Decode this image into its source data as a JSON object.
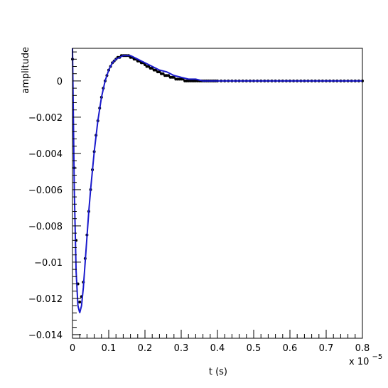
{
  "chart_data": {
    "type": "scatter",
    "title": "",
    "xlabel": "t (s)",
    "ylabel": "amplitude",
    "x_exponent_label": "x 10",
    "x_exponent_power": "−5",
    "xlim": [
      0,
      0.8
    ],
    "ylim": [
      -0.0142,
      0.0018
    ],
    "x_ticks": [
      {
        "value": 0,
        "label": "0"
      },
      {
        "value": 0.1,
        "label": "0.1"
      },
      {
        "value": 0.2,
        "label": "0.2"
      },
      {
        "value": 0.3,
        "label": "0.3"
      },
      {
        "value": 0.4,
        "label": "0.4"
      },
      {
        "value": 0.5,
        "label": "0.5"
      },
      {
        "value": 0.6,
        "label": "0.6"
      },
      {
        "value": 0.7,
        "label": "0.7"
      },
      {
        "value": 0.8,
        "label": "0.8"
      }
    ],
    "y_ticks": [
      {
        "value": 0,
        "label": "0"
      },
      {
        "value": -0.002,
        "label": "−0.002"
      },
      {
        "value": -0.004,
        "label": "−0.004"
      },
      {
        "value": -0.006,
        "label": "−0.006"
      },
      {
        "value": -0.008,
        "label": "−0.008"
      },
      {
        "value": -0.01,
        "label": "−0.01"
      },
      {
        "value": -0.012,
        "label": "−0.012"
      },
      {
        "value": -0.014,
        "label": "−0.014"
      }
    ],
    "grid": false,
    "series": [
      {
        "kind": "points",
        "color": "#000000",
        "x": [
          0.0,
          0.005,
          0.01,
          0.015,
          0.02,
          0.025,
          0.03,
          0.035,
          0.04,
          0.045,
          0.05,
          0.055,
          0.06,
          0.065,
          0.07,
          0.075,
          0.08,
          0.085,
          0.09,
          0.095,
          0.1,
          0.105,
          0.11,
          0.115,
          0.12,
          0.125,
          0.13,
          0.135,
          0.14,
          0.145,
          0.15,
          0.155,
          0.16,
          0.165,
          0.17,
          0.175,
          0.18,
          0.185,
          0.19,
          0.195,
          0.2,
          0.205,
          0.21,
          0.215,
          0.22,
          0.225,
          0.23,
          0.235,
          0.24,
          0.245,
          0.25,
          0.255,
          0.26,
          0.265,
          0.27,
          0.275,
          0.28,
          0.285,
          0.29,
          0.295,
          0.3,
          0.305,
          0.31,
          0.315,
          0.32,
          0.325,
          0.33,
          0.335,
          0.34,
          0.345,
          0.35,
          0.355,
          0.36,
          0.365,
          0.37,
          0.375,
          0.38,
          0.385,
          0.39,
          0.395,
          0.4,
          0.41,
          0.42,
          0.43,
          0.44,
          0.45,
          0.46,
          0.47,
          0.48,
          0.49,
          0.5,
          0.51,
          0.52,
          0.53,
          0.54,
          0.55,
          0.56,
          0.57,
          0.58,
          0.59,
          0.6,
          0.61,
          0.62,
          0.63,
          0.64,
          0.65,
          0.66,
          0.67,
          0.68,
          0.69,
          0.7,
          0.71,
          0.72,
          0.73,
          0.74,
          0.75,
          0.76,
          0.77,
          0.78,
          0.79,
          0.8
        ],
        "y": [
          0.0012,
          -0.0048,
          -0.0088,
          -0.0112,
          -0.0122,
          -0.0119,
          -0.0111,
          -0.0098,
          -0.0085,
          -0.0072,
          -0.006,
          -0.0049,
          -0.0039,
          -0.003,
          -0.0022,
          -0.0015,
          -0.0009,
          -0.0004,
          0.0,
          0.0003,
          0.0006,
          0.0008,
          0.001,
          0.0011,
          0.0012,
          0.0013,
          0.0013,
          0.0014,
          0.0014,
          0.0014,
          0.0014,
          0.0014,
          0.0013,
          0.0013,
          0.0012,
          0.0012,
          0.0011,
          0.0011,
          0.001,
          0.001,
          0.0009,
          0.0008,
          0.0008,
          0.0007,
          0.0007,
          0.0006,
          0.0006,
          0.0005,
          0.0005,
          0.0004,
          0.0004,
          0.0003,
          0.0003,
          0.0003,
          0.0002,
          0.0002,
          0.0002,
          0.0001,
          0.0001,
          0.0001,
          0.0001,
          0.0001,
          0.0,
          0.0,
          0.0,
          0.0,
          0.0,
          0.0,
          0.0,
          0.0,
          0.0,
          0.0,
          0.0,
          0.0,
          0.0,
          0.0,
          0.0,
          0.0,
          0.0,
          0.0,
          0.0,
          0.0,
          0.0,
          0.0,
          0.0,
          0.0,
          0.0,
          0.0,
          0.0,
          0.0,
          0.0,
          0.0,
          0.0,
          0.0,
          0.0,
          0.0,
          0.0,
          0.0,
          0.0,
          0.0,
          0.0,
          0.0,
          0.0,
          0.0,
          0.0,
          0.0,
          0.0,
          0.0,
          0.0,
          0.0,
          0.0,
          0.0,
          0.0,
          0.0,
          0.0,
          0.0,
          0.0,
          0.0,
          0.0,
          0.0,
          0.0
        ]
      },
      {
        "kind": "line",
        "color": "#1a1acc",
        "x": [
          0.0,
          0.005,
          0.01,
          0.015,
          0.02,
          0.025,
          0.03,
          0.035,
          0.04,
          0.045,
          0.05,
          0.06,
          0.07,
          0.08,
          0.09,
          0.1,
          0.11,
          0.12,
          0.13,
          0.14,
          0.15,
          0.16,
          0.17,
          0.18,
          0.19,
          0.2,
          0.22,
          0.24,
          0.26,
          0.28,
          0.3,
          0.32,
          0.34,
          0.36,
          0.38,
          0.4,
          0.42,
          0.44,
          0.46,
          0.48,
          0.5,
          0.55,
          0.6,
          0.65,
          0.7,
          0.75,
          0.8
        ],
        "y": [
          0.0018,
          -0.006,
          -0.0105,
          -0.0124,
          -0.0128,
          -0.0124,
          -0.0114,
          -0.01,
          -0.0086,
          -0.0072,
          -0.006,
          -0.0039,
          -0.0022,
          -0.0009,
          0.0,
          0.0006,
          0.001,
          0.0012,
          0.0013,
          0.0014,
          0.0014,
          0.0014,
          0.0013,
          0.0012,
          0.0011,
          0.001,
          0.0008,
          0.0006,
          0.0005,
          0.0003,
          0.0002,
          0.0001,
          0.0001,
          0.0,
          0.0,
          0.0,
          0.0,
          0.0,
          0.0,
          0.0,
          0.0,
          0.0,
          0.0,
          0.0,
          0.0,
          0.0,
          0.0
        ]
      }
    ]
  }
}
